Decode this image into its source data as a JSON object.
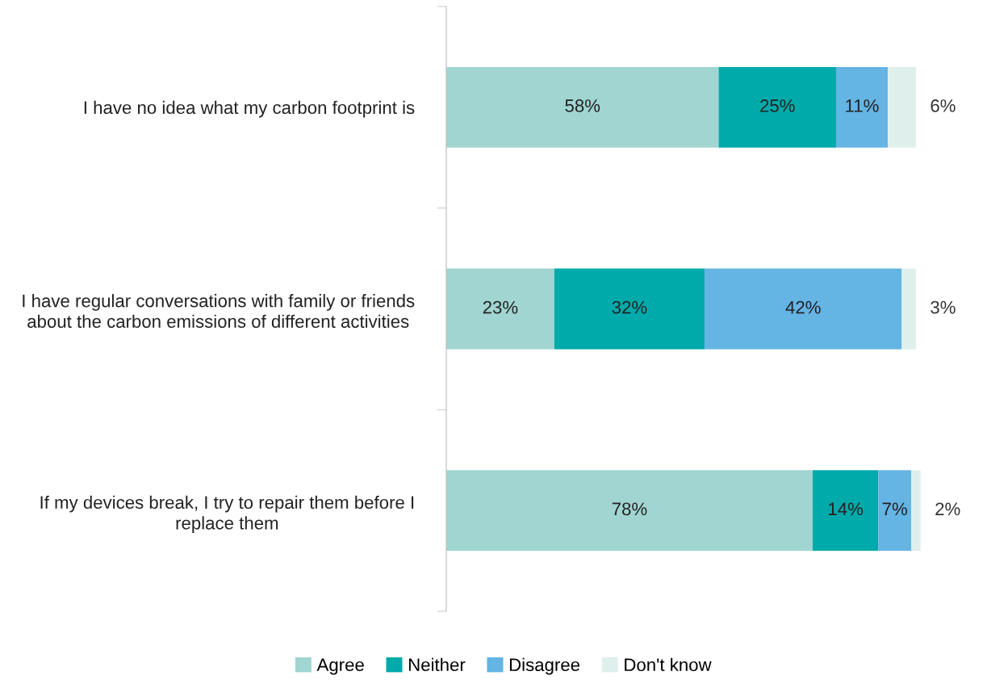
{
  "chart_data": {
    "type": "bar",
    "orientation": "horizontal",
    "stacked": true,
    "data_labels": true,
    "legend": "bottom",
    "grid": false,
    "categories": [
      "I have no idea what my carbon footprint is",
      "I have regular conversations with family or friends about the carbon emissions of different activities",
      "If my devices break, I try to repair them before I replace them"
    ],
    "series": [
      {
        "name": "Agree",
        "color": "#a0d5d1",
        "values": [
          58,
          23,
          78
        ],
        "value_labels": [
          "58%",
          "23%",
          "78%"
        ]
      },
      {
        "name": "Neither",
        "color": "#00aaaa",
        "values": [
          25,
          32,
          14
        ],
        "value_labels": [
          "25%",
          "32%",
          "14%"
        ]
      },
      {
        "name": "Disagree",
        "color": "#64b4e4",
        "values": [
          11,
          42,
          7
        ],
        "value_labels": [
          "11%",
          "42%",
          "7%"
        ]
      },
      {
        "name": "Don't know",
        "color": "#dff0ec",
        "values": [
          6,
          3,
          2
        ],
        "value_labels": [
          "6%",
          "3%",
          "2%"
        ]
      }
    ]
  }
}
